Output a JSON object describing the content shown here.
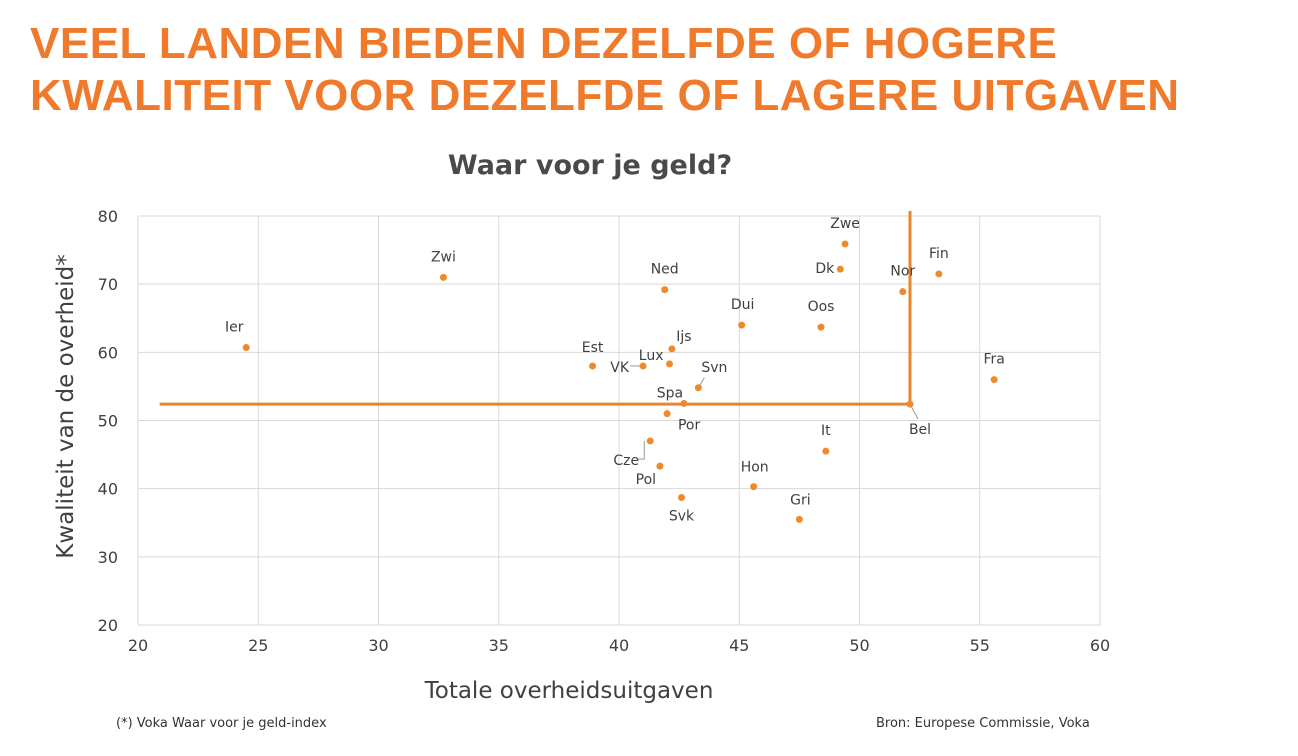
{
  "headline": {
    "line1": "VEEL LANDEN BIEDEN DEZELFDE OF HOGERE",
    "line2": "KWALITEIT VOOR DEZELFDE OF LAGERE UITGAVEN"
  },
  "footnote": "(*) Voka Waar voor je geld-index",
  "source": "Bron: Europese Commissie, Voka",
  "colors": {
    "accent": "#f07a2c",
    "point": "#ef8a2a",
    "grid": "#d9d9d9",
    "text": "#404040"
  },
  "chart_data": {
    "type": "scatter",
    "title": "Waar voor je geld?",
    "xlabel": "Totale overheidsuitgaven",
    "ylabel": "Kwaliteit van de overheid*",
    "xlim": [
      20,
      60
    ],
    "ylim": [
      20,
      80
    ],
    "xticks": [
      20,
      25,
      30,
      35,
      40,
      45,
      50,
      55,
      60
    ],
    "yticks": [
      20,
      30,
      40,
      50,
      60,
      70,
      80
    ],
    "grid": true,
    "points": [
      {
        "label": "Ier",
        "x": 24.5,
        "y": 60.7
      },
      {
        "label": "Zwi",
        "x": 32.7,
        "y": 71.0
      },
      {
        "label": "Est",
        "x": 38.9,
        "y": 58.0
      },
      {
        "label": "VK",
        "x": 41.0,
        "y": 58.0
      },
      {
        "label": "Ned",
        "x": 41.9,
        "y": 69.2
      },
      {
        "label": "Ijs",
        "x": 42.2,
        "y": 60.5
      },
      {
        "label": "Lux",
        "x": 42.1,
        "y": 58.3
      },
      {
        "label": "Svn",
        "x": 43.3,
        "y": 54.8
      },
      {
        "label": "Spa",
        "x": 42.7,
        "y": 52.5
      },
      {
        "label": "Por",
        "x": 42.0,
        "y": 51.0
      },
      {
        "label": "Cze",
        "x": 41.3,
        "y": 47.0
      },
      {
        "label": "Pol",
        "x": 41.7,
        "y": 43.3
      },
      {
        "label": "Svk",
        "x": 42.6,
        "y": 38.7
      },
      {
        "label": "Hon",
        "x": 45.6,
        "y": 40.3
      },
      {
        "label": "Gri",
        "x": 47.5,
        "y": 35.5
      },
      {
        "label": "It",
        "x": 48.6,
        "y": 45.5
      },
      {
        "label": "Dui",
        "x": 45.1,
        "y": 64.0
      },
      {
        "label": "Oos",
        "x": 48.4,
        "y": 63.7
      },
      {
        "label": "Zwe",
        "x": 49.4,
        "y": 75.9
      },
      {
        "label": "Dk",
        "x": 49.2,
        "y": 72.2
      },
      {
        "label": "Nor",
        "x": 51.8,
        "y": 68.9
      },
      {
        "label": "Fin",
        "x": 53.3,
        "y": 71.5
      },
      {
        "label": "Bel",
        "x": 52.1,
        "y": 52.4
      },
      {
        "label": "Fra",
        "x": 55.6,
        "y": 56.0
      }
    ],
    "reference_lines": {
      "x": 52.1,
      "y": 52.4,
      "color": "#e8862d"
    }
  }
}
